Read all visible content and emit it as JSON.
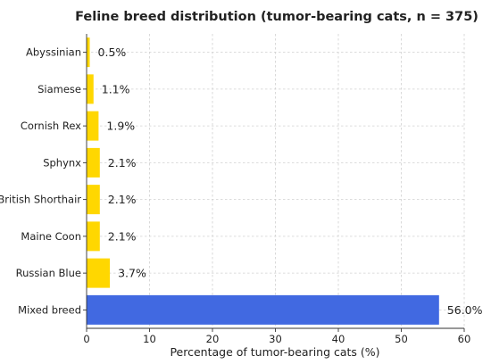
{
  "chart_data": {
    "type": "bar",
    "orientation": "horizontal",
    "title": "Feline breed distribution (tumor-bearing cats, n = 375)",
    "xlabel": "Percentage of tumor-bearing cats (%)",
    "ylabel": "",
    "xlim": [
      0,
      60
    ],
    "xticks": [
      0,
      10,
      20,
      30,
      40,
      50,
      60
    ],
    "grid": true,
    "categories": [
      "Abyssinian",
      "Siamese",
      "Cornish Rex",
      "Sphynx",
      "British Shorthair",
      "Maine Coon",
      "Russian Blue",
      "Mixed breed"
    ],
    "values": [
      0.5,
      1.1,
      1.9,
      2.1,
      2.1,
      2.1,
      3.7,
      56.0
    ],
    "value_labels": [
      "0.5%",
      "1.1%",
      "1.9%",
      "2.1%",
      "2.1%",
      "2.1%",
      "3.7%",
      "56.0%"
    ],
    "colors": [
      "#FFD700",
      "#FFD700",
      "#FFD700",
      "#FFD700",
      "#FFD700",
      "#FFD700",
      "#FFD700",
      "#4169E1"
    ]
  }
}
